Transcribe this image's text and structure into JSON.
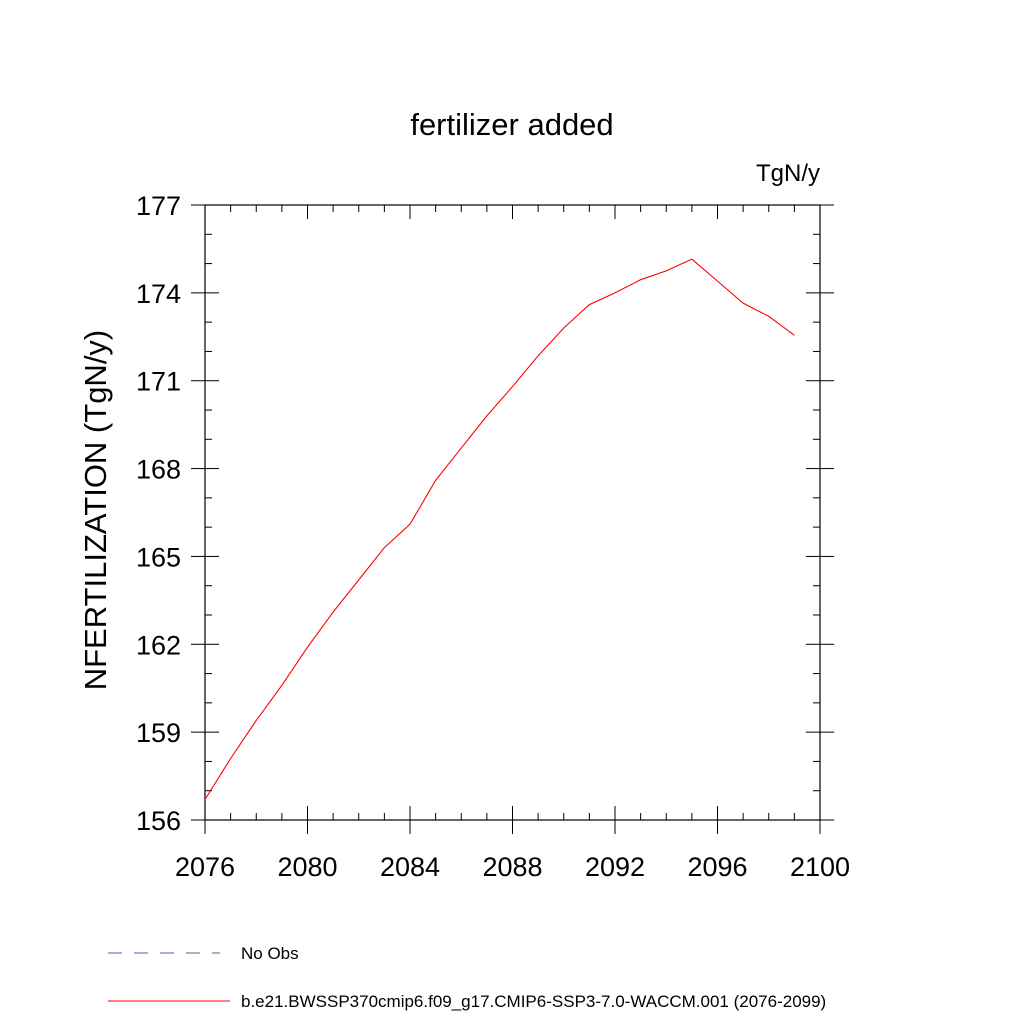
{
  "chart_data": {
    "type": "line",
    "title": "fertilizer added",
    "units_label": "TgN/y",
    "ylabel": "NFERTILIZATION  (TgN/y)",
    "xlabel": "",
    "xlim": [
      2076,
      2100
    ],
    "ylim": [
      156,
      177
    ],
    "x_ticks": [
      2076,
      2080,
      2084,
      2088,
      2092,
      2096,
      2100
    ],
    "y_ticks": [
      156,
      159,
      162,
      165,
      168,
      171,
      174,
      177
    ],
    "grid": false,
    "legend_position": "bottom-left",
    "series": [
      {
        "name": "No Obs",
        "color": "#6655aa",
        "dash": "dashed",
        "x": [],
        "y": []
      },
      {
        "name": "b.e21.BWSSP370cmip6.f09_g17.CMIP6-SSP3-7.0-WACCM.001 (2076-2099)",
        "color": "#ff0000",
        "dash": "solid",
        "x": [
          2076,
          2077,
          2078,
          2079,
          2080,
          2081,
          2082,
          2083,
          2084,
          2085,
          2086,
          2087,
          2088,
          2089,
          2090,
          2091,
          2092,
          2093,
          2094,
          2095,
          2096,
          2097,
          2098,
          2099
        ],
        "y": [
          156.7,
          158.1,
          159.4,
          160.6,
          161.9,
          163.1,
          164.2,
          165.3,
          166.1,
          167.6,
          168.7,
          169.8,
          170.8,
          171.85,
          172.8,
          173.6,
          174.0,
          174.45,
          174.75,
          175.15,
          174.4,
          173.65,
          173.2,
          172.55
        ]
      }
    ]
  }
}
